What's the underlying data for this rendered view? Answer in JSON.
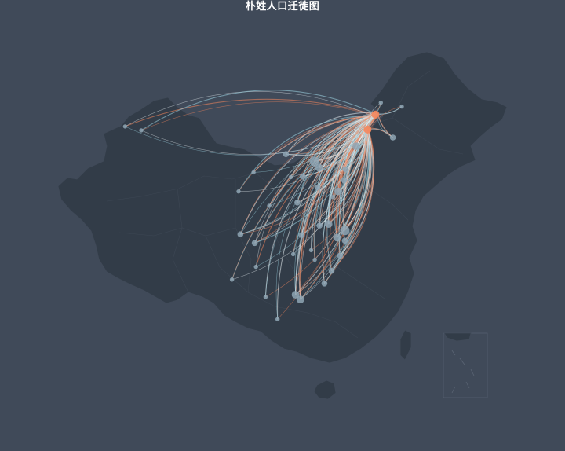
{
  "title": "朴姓人口迁徙图",
  "colors": {
    "background": "#404a59",
    "land": "#323c48",
    "border": "#404a59",
    "flow_warm": "#f4865c",
    "flow_cool": "#9ed7e6",
    "flow_white": "#e8eef3",
    "node": "#8fa6b5"
  },
  "chart_data": {
    "type": "flow-map",
    "title": "朴姓人口迁徙图",
    "hubs": [
      {
        "id": "hub-northeast",
        "lon": 126.6,
        "lat": 45.8
      },
      {
        "id": "hub-northeast-2",
        "lon": 125.3,
        "lat": 43.9
      }
    ],
    "origins": [
      {
        "id": "xinjiang-west",
        "lon": 84.9,
        "lat": 44.3,
        "weight": 1
      },
      {
        "id": "xinjiang-east",
        "lon": 87.6,
        "lat": 43.8,
        "weight": 1
      },
      {
        "id": "beijing",
        "lon": 116.4,
        "lat": 39.9,
        "weight": 4
      },
      {
        "id": "tianjin",
        "lon": 117.2,
        "lat": 39.1,
        "weight": 3
      },
      {
        "id": "hebei",
        "lon": 114.5,
        "lat": 38.0,
        "weight": 2
      },
      {
        "id": "shandong-1",
        "lon": 117.0,
        "lat": 36.6,
        "weight": 2
      },
      {
        "id": "shandong-2",
        "lon": 120.4,
        "lat": 36.1,
        "weight": 3
      },
      {
        "id": "shandong-3",
        "lon": 121.4,
        "lat": 37.5,
        "weight": 2
      },
      {
        "id": "dalian",
        "lon": 121.6,
        "lat": 38.9,
        "weight": 2
      },
      {
        "id": "shenyang",
        "lon": 123.4,
        "lat": 41.8,
        "weight": 3
      },
      {
        "id": "henan",
        "lon": 113.6,
        "lat": 34.7,
        "weight": 2
      },
      {
        "id": "jiangsu",
        "lon": 118.8,
        "lat": 32.0,
        "weight": 3
      },
      {
        "id": "shanghai",
        "lon": 121.5,
        "lat": 31.2,
        "weight": 4
      },
      {
        "id": "zhejiang",
        "lon": 120.2,
        "lat": 30.3,
        "weight": 3
      },
      {
        "id": "anhui",
        "lon": 117.3,
        "lat": 31.8,
        "weight": 2
      },
      {
        "id": "hubei",
        "lon": 114.3,
        "lat": 30.6,
        "weight": 2
      },
      {
        "id": "hunan",
        "lon": 112.9,
        "lat": 28.2,
        "weight": 1
      },
      {
        "id": "jiangxi",
        "lon": 115.9,
        "lat": 28.7,
        "weight": 1
      },
      {
        "id": "fujian",
        "lon": 119.3,
        "lat": 26.1,
        "weight": 2
      },
      {
        "id": "xiamen",
        "lon": 118.1,
        "lat": 24.5,
        "weight": 2
      },
      {
        "id": "guangzhou",
        "lon": 113.3,
        "lat": 23.1,
        "weight": 3
      },
      {
        "id": "shenzhen",
        "lon": 114.1,
        "lat": 22.5,
        "weight": 3
      },
      {
        "id": "chongqing",
        "lon": 106.5,
        "lat": 29.6,
        "weight": 2
      },
      {
        "id": "chengdu",
        "lon": 104.1,
        "lat": 30.7,
        "weight": 2
      },
      {
        "id": "guizhou",
        "lon": 106.7,
        "lat": 26.6,
        "weight": 1
      },
      {
        "id": "yunnan",
        "lon": 102.7,
        "lat": 25.0,
        "weight": 1
      },
      {
        "id": "guangxi",
        "lon": 108.3,
        "lat": 22.8,
        "weight": 1
      },
      {
        "id": "shaanxi",
        "lon": 108.9,
        "lat": 34.3,
        "weight": 1
      },
      {
        "id": "shanxi",
        "lon": 112.5,
        "lat": 37.9,
        "weight": 1
      },
      {
        "id": "inner-mongolia",
        "lon": 111.7,
        "lat": 40.8,
        "weight": 2
      },
      {
        "id": "ningxia",
        "lon": 106.3,
        "lat": 38.5,
        "weight": 1
      },
      {
        "id": "gansu",
        "lon": 103.8,
        "lat": 36.1,
        "weight": 1
      },
      {
        "id": "hainan",
        "lon": 110.3,
        "lat": 20.0,
        "weight": 1
      },
      {
        "id": "jilin-east",
        "lon": 129.5,
        "lat": 42.9,
        "weight": 2
      },
      {
        "id": "heilongjiang-north",
        "lon": 127.5,
        "lat": 47.3,
        "weight": 1
      },
      {
        "id": "heilongjiang-east",
        "lon": 131.0,
        "lat": 46.8,
        "weight": 1
      },
      {
        "id": "qingdao-2",
        "lon": 119.5,
        "lat": 35.4,
        "weight": 1
      },
      {
        "id": "nanchang-2",
        "lon": 116.5,
        "lat": 27.5,
        "weight": 1
      },
      {
        "id": "wenzhou",
        "lon": 120.7,
        "lat": 28.0,
        "weight": 2
      },
      {
        "id": "ningbo",
        "lon": 121.5,
        "lat": 29.9,
        "weight": 2
      }
    ]
  }
}
